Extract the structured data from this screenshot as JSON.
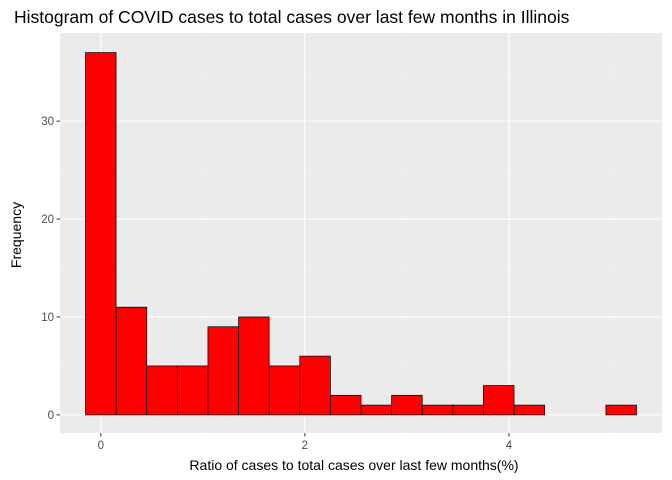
{
  "chart_data": {
    "type": "bar",
    "title": "Histogram of COVID cases to total cases over last few months in Illinois",
    "xlabel": "Ratio of cases to total cases over last few months(%)",
    "ylabel": "Frequency",
    "bin_width": 0.3,
    "bin_centers": [
      0,
      0.3,
      0.6,
      0.9,
      1.2,
      1.5,
      1.8,
      2.1,
      2.4,
      2.7,
      3.0,
      3.3,
      3.6,
      3.9,
      4.2,
      4.5,
      4.8,
      5.1
    ],
    "values": [
      37,
      11,
      5,
      5,
      9,
      10,
      5,
      6,
      2,
      1,
      2,
      1,
      1,
      3,
      1,
      0,
      0,
      1
    ],
    "xlim": [
      -0.4,
      5.5
    ],
    "ylim": [
      -1.85,
      39.0
    ],
    "x_ticks": [
      0,
      2,
      4
    ],
    "x_tick_labels": [
      "0",
      "2",
      "4"
    ],
    "y_ticks": [
      0,
      10,
      20,
      30
    ],
    "y_tick_labels": [
      "0",
      "10",
      "20",
      "30"
    ],
    "grid": true,
    "colors": {
      "bar_fill": "#ff0000",
      "bar_stroke": "#000000",
      "panel_background": "#ebebeb",
      "grid_major": "#ffffff",
      "grid_minor": "#f5f5f5",
      "tick_color": "#333333"
    }
  }
}
